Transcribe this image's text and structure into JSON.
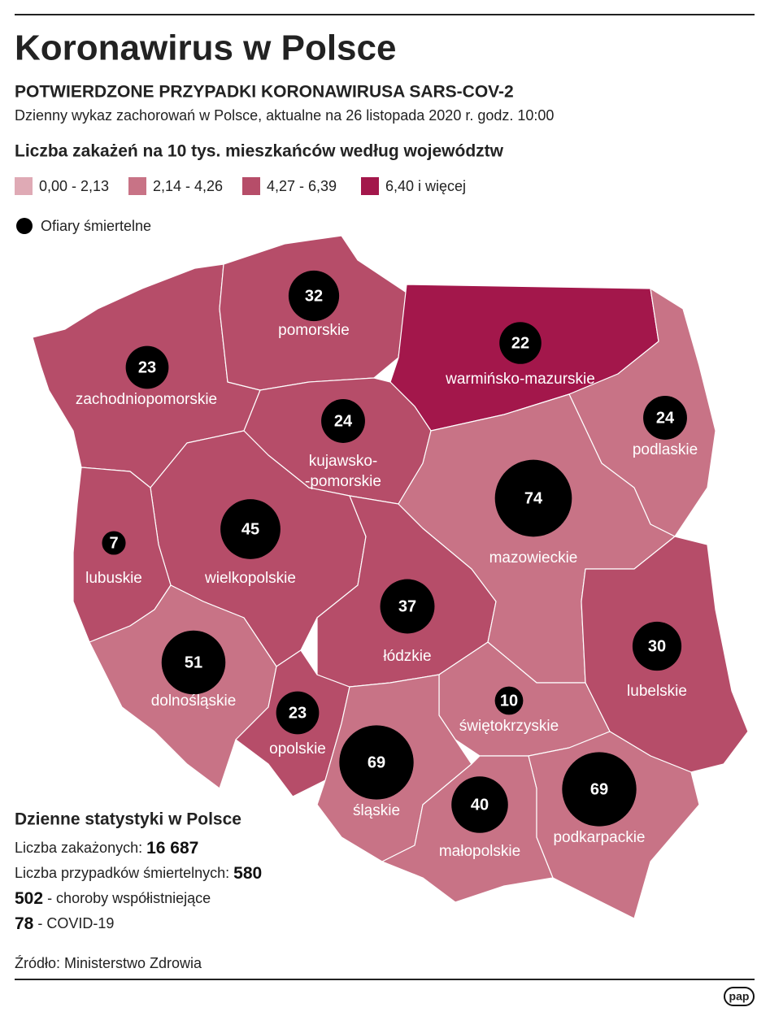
{
  "header": {
    "title": "Koronawirus w Polsce",
    "subtitle": "POTWIERDZONE PRZYPADKI KORONAWIRUSA SARS-COV-2",
    "description": "Dzienny wykaz zachorowań w Polsce, aktualne na 26 listopada 2020 r. godz. 10:00"
  },
  "legend": {
    "title": "Liczba zakażeń na 10 tys. mieszkańców według województw",
    "items": [
      {
        "label": "0,00 - 2,13",
        "color": "#dfaab5"
      },
      {
        "label": "2,14 - 4,26",
        "color": "#c87386"
      },
      {
        "label": "4,27 - 6,39",
        "color": "#b64d69"
      },
      {
        "label": "6,40 i więcej",
        "color": "#a3174b"
      }
    ],
    "deaths_label": "Ofiary śmiertelne",
    "deaths_color": "#000000"
  },
  "regions": [
    {
      "name": [
        "zachodniopomorskie"
      ],
      "deaths": 23,
      "color": "#b64d69"
    },
    {
      "name": [
        "pomorskie"
      ],
      "deaths": 32,
      "color": "#b64d69"
    },
    {
      "name": [
        "warmińsko-mazurskie"
      ],
      "deaths": 22,
      "color": "#a3174b"
    },
    {
      "name": [
        "podlaskie"
      ],
      "deaths": 24,
      "color": "#c87386"
    },
    {
      "name": [
        "kujawsko-",
        "-pomorskie"
      ],
      "deaths": 24,
      "color": "#b64d69"
    },
    {
      "name": [
        "wielkopolskie"
      ],
      "deaths": 45,
      "color": "#b64d69"
    },
    {
      "name": [
        "lubuskie"
      ],
      "deaths": 7,
      "color": "#b64d69"
    },
    {
      "name": [
        "dolnośląskie"
      ],
      "deaths": 51,
      "color": "#c87386"
    },
    {
      "name": [
        "opolskie"
      ],
      "deaths": 23,
      "color": "#b64d69"
    },
    {
      "name": [
        "łódzkie"
      ],
      "deaths": 37,
      "color": "#b64d69"
    },
    {
      "name": [
        "mazowieckie"
      ],
      "deaths": 74,
      "color": "#c87386"
    },
    {
      "name": [
        "lubelskie"
      ],
      "deaths": 30,
      "color": "#b64d69"
    },
    {
      "name": [
        "świętokrzyskie"
      ],
      "deaths": 10,
      "color": "#c87386"
    },
    {
      "name": [
        "śląskie"
      ],
      "deaths": 69,
      "color": "#c87386"
    },
    {
      "name": [
        "małopolskie"
      ],
      "deaths": 40,
      "color": "#c87386"
    },
    {
      "name": [
        "podkarpackie"
      ],
      "deaths": 69,
      "color": "#c87386"
    }
  ],
  "stats": {
    "title": "Dzienne statystyki w Polsce",
    "rows": [
      {
        "label": "Liczba zakażonych:",
        "value": "16 687"
      },
      {
        "label": "Liczba przypadków śmiertelnych:",
        "value": "580"
      },
      {
        "value": "502",
        "label": "- choroby współistniejące"
      },
      {
        "value": "78",
        "label": "- COVID-19"
      }
    ]
  },
  "footer": {
    "source": "Źródło: Ministerstwo Zdrowia",
    "logo": "pap"
  }
}
